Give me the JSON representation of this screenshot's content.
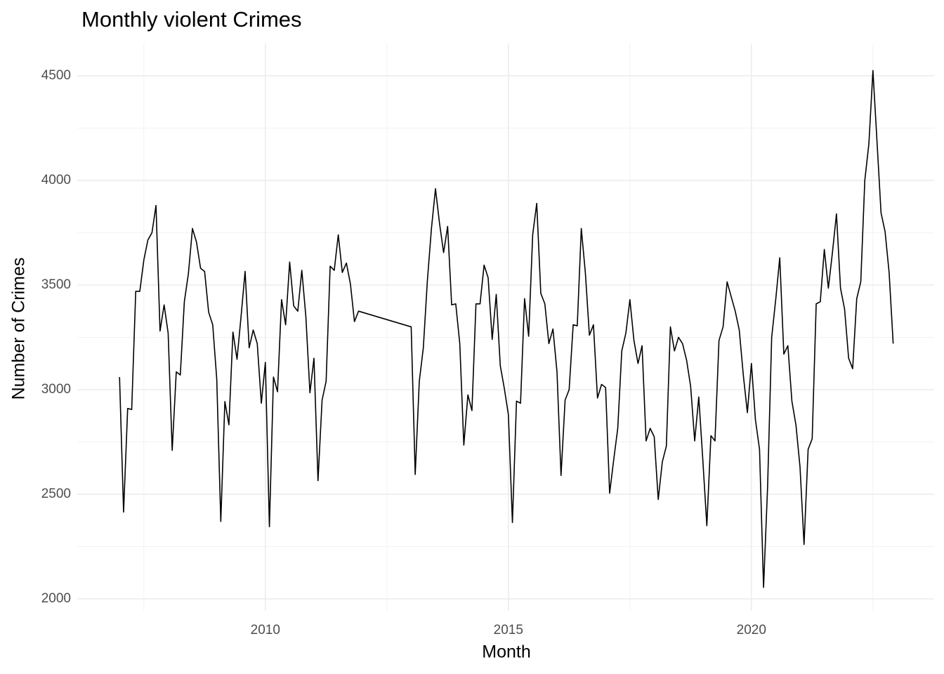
{
  "chart_data": {
    "type": "line",
    "title": "Monthly violent Crimes",
    "x_label": "Month",
    "y_label": "Number of Crimes",
    "color": "#000000",
    "grid": true,
    "xlim": [
      2006.13,
      2023.76
    ],
    "xticks": [
      2010,
      2015,
      2020
    ],
    "x_minor_ticks": [
      2007.5,
      2012.5,
      2017.5,
      2022.5
    ],
    "ylim": [
      1943,
      4654
    ],
    "yticks": [
      2000,
      2500,
      3000,
      3500,
      4000,
      4500
    ],
    "y_minor_ticks": [
      2250,
      2750,
      3250,
      3750,
      4250
    ],
    "x": [
      2007,
      2007.083,
      2007.167,
      2007.25,
      2007.333,
      2007.417,
      2007.5,
      2007.583,
      2007.667,
      2007.75,
      2007.833,
      2007.917,
      2008,
      2008.083,
      2008.167,
      2008.25,
      2008.333,
      2008.417,
      2008.5,
      2008.583,
      2008.667,
      2008.75,
      2008.833,
      2008.917,
      2009,
      2009.083,
      2009.167,
      2009.25,
      2009.333,
      2009.417,
      2009.5,
      2009.583,
      2009.667,
      2009.75,
      2009.833,
      2009.917,
      2010,
      2010.083,
      2010.167,
      2010.25,
      2010.333,
      2010.417,
      2010.5,
      2010.583,
      2010.667,
      2010.75,
      2010.833,
      2010.917,
      2011,
      2011.083,
      2011.167,
      2011.25,
      2011.333,
      2011.417,
      2011.5,
      2011.583,
      2011.667,
      2011.75,
      2011.833,
      2011.917,
      2013,
      2013.083,
      2013.167,
      2013.25,
      2013.333,
      2013.417,
      2013.5,
      2013.583,
      2013.667,
      2013.75,
      2013.833,
      2013.917,
      2014,
      2014.083,
      2014.167,
      2014.25,
      2014.333,
      2014.417,
      2014.5,
      2014.583,
      2014.667,
      2014.75,
      2014.833,
      2014.917,
      2015,
      2015.083,
      2015.167,
      2015.25,
      2015.333,
      2015.417,
      2015.5,
      2015.583,
      2015.667,
      2015.75,
      2015.833,
      2015.917,
      2016,
      2016.083,
      2016.167,
      2016.25,
      2016.333,
      2016.417,
      2016.5,
      2016.583,
      2016.667,
      2016.75,
      2016.833,
      2016.917,
      2017,
      2017.083,
      2017.167,
      2017.25,
      2017.333,
      2017.417,
      2017.5,
      2017.583,
      2017.667,
      2017.75,
      2017.833,
      2017.917,
      2018,
      2018.083,
      2018.167,
      2018.25,
      2018.333,
      2018.417,
      2018.5,
      2018.583,
      2018.667,
      2018.75,
      2018.833,
      2018.917,
      2019,
      2019.083,
      2019.167,
      2019.25,
      2019.333,
      2019.417,
      2019.5,
      2019.583,
      2019.667,
      2019.75,
      2019.833,
      2019.917,
      2020,
      2020.083,
      2020.167,
      2020.25,
      2020.333,
      2020.417,
      2020.5,
      2020.583,
      2020.667,
      2020.75,
      2020.833,
      2020.917,
      2021,
      2021.083,
      2021.167,
      2021.25,
      2021.333,
      2021.417,
      2021.5,
      2021.583,
      2021.667,
      2021.75,
      2021.833,
      2021.917,
      2022,
      2022.083,
      2022.167,
      2022.25,
      2022.333,
      2022.417,
      2022.5,
      2022.583,
      2022.667,
      2022.75,
      2022.833,
      2022.917
    ],
    "values": [
      3060,
      2415,
      2910,
      2905,
      3470,
      3470,
      3620,
      3715,
      3750,
      3880,
      3280,
      3405,
      3270,
      2710,
      3085,
      3070,
      3420,
      3555,
      3770,
      3705,
      3580,
      3565,
      3370,
      3310,
      3050,
      2370,
      2943,
      2832,
      3275,
      3145,
      3350,
      3565,
      3200,
      3285,
      3220,
      2935,
      3130,
      2345,
      3060,
      2990,
      3430,
      3310,
      3610,
      3400,
      3375,
      3570,
      3350,
      2985,
      3150,
      2565,
      2950,
      3040,
      3590,
      3570,
      3740,
      3560,
      3605,
      3505,
      3325,
      3375,
      3300,
      2595,
      3040,
      3200,
      3520,
      3770,
      3960,
      3795,
      3655,
      3780,
      3405,
      3410,
      3220,
      2735,
      2975,
      2900,
      3410,
      3410,
      3595,
      3535,
      3240,
      3455,
      3115,
      3005,
      2880,
      2365,
      2945,
      2935,
      3435,
      3255,
      3740,
      3890,
      3460,
      3410,
      3220,
      3290,
      3085,
      2590,
      2950,
      3000,
      3310,
      3305,
      3770,
      3560,
      3260,
      3310,
      2960,
      3025,
      3010,
      2505,
      2665,
      2815,
      3185,
      3270,
      3430,
      3235,
      3125,
      3210,
      2755,
      2815,
      2775,
      2475,
      2655,
      2730,
      3300,
      3185,
      3250,
      3220,
      3140,
      3015,
      2755,
      2965,
      2665,
      2350,
      2780,
      2755,
      3235,
      3300,
      3515,
      3445,
      3375,
      3285,
      3070,
      2890,
      3125,
      2855,
      2715,
      2055,
      2535,
      3250,
      3430,
      3630,
      3170,
      3210,
      2945,
      2830,
      2630,
      2260,
      2715,
      2765,
      3410,
      3420,
      3670,
      3485,
      3655,
      3840,
      3485,
      3385,
      3150,
      3100,
      3435,
      3515,
      4000,
      4175,
      4525,
      4190,
      3845,
      3755,
      3560,
      3220
    ]
  }
}
